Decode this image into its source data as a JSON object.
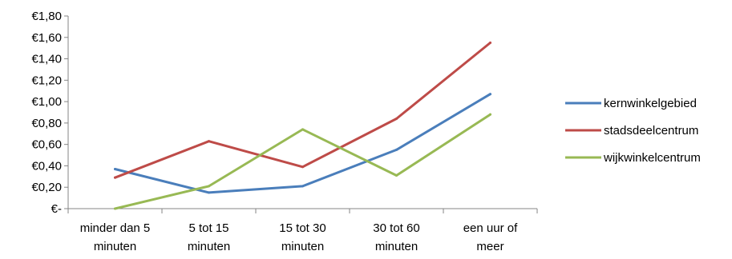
{
  "chart_data": {
    "type": "line",
    "categories": [
      [
        "minder  dan 5",
        "minuten"
      ],
      [
        "5 tot  15",
        "minuten"
      ],
      [
        "15 tot  30",
        "minuten"
      ],
      [
        "30 tot  60",
        "minuten"
      ],
      [
        "een uur  of",
        "meer"
      ]
    ],
    "y_tick_labels": [
      "€-",
      "€0,20",
      "€0,40",
      "€0,60",
      "€0,80",
      "€1,00",
      "€1,20",
      "€1,40",
      "€1,60",
      "€1,80"
    ],
    "ylim": [
      0,
      1.8
    ],
    "y_step": 0.2,
    "grid": false,
    "legend_position": "right",
    "series": [
      {
        "name": "kernwinkelgebied",
        "color": "#4a7ebb",
        "values": [
          0.37,
          0.15,
          0.21,
          0.55,
          1.07
        ]
      },
      {
        "name": "stadsdeelcentrum",
        "color": "#be4b48",
        "values": [
          0.29,
          0.63,
          0.39,
          0.84,
          1.55
        ]
      },
      {
        "name": "wijkwinkelcentrum",
        "color": "#98b954",
        "values": [
          0.0,
          0.21,
          0.74,
          0.31,
          0.88
        ]
      }
    ]
  }
}
